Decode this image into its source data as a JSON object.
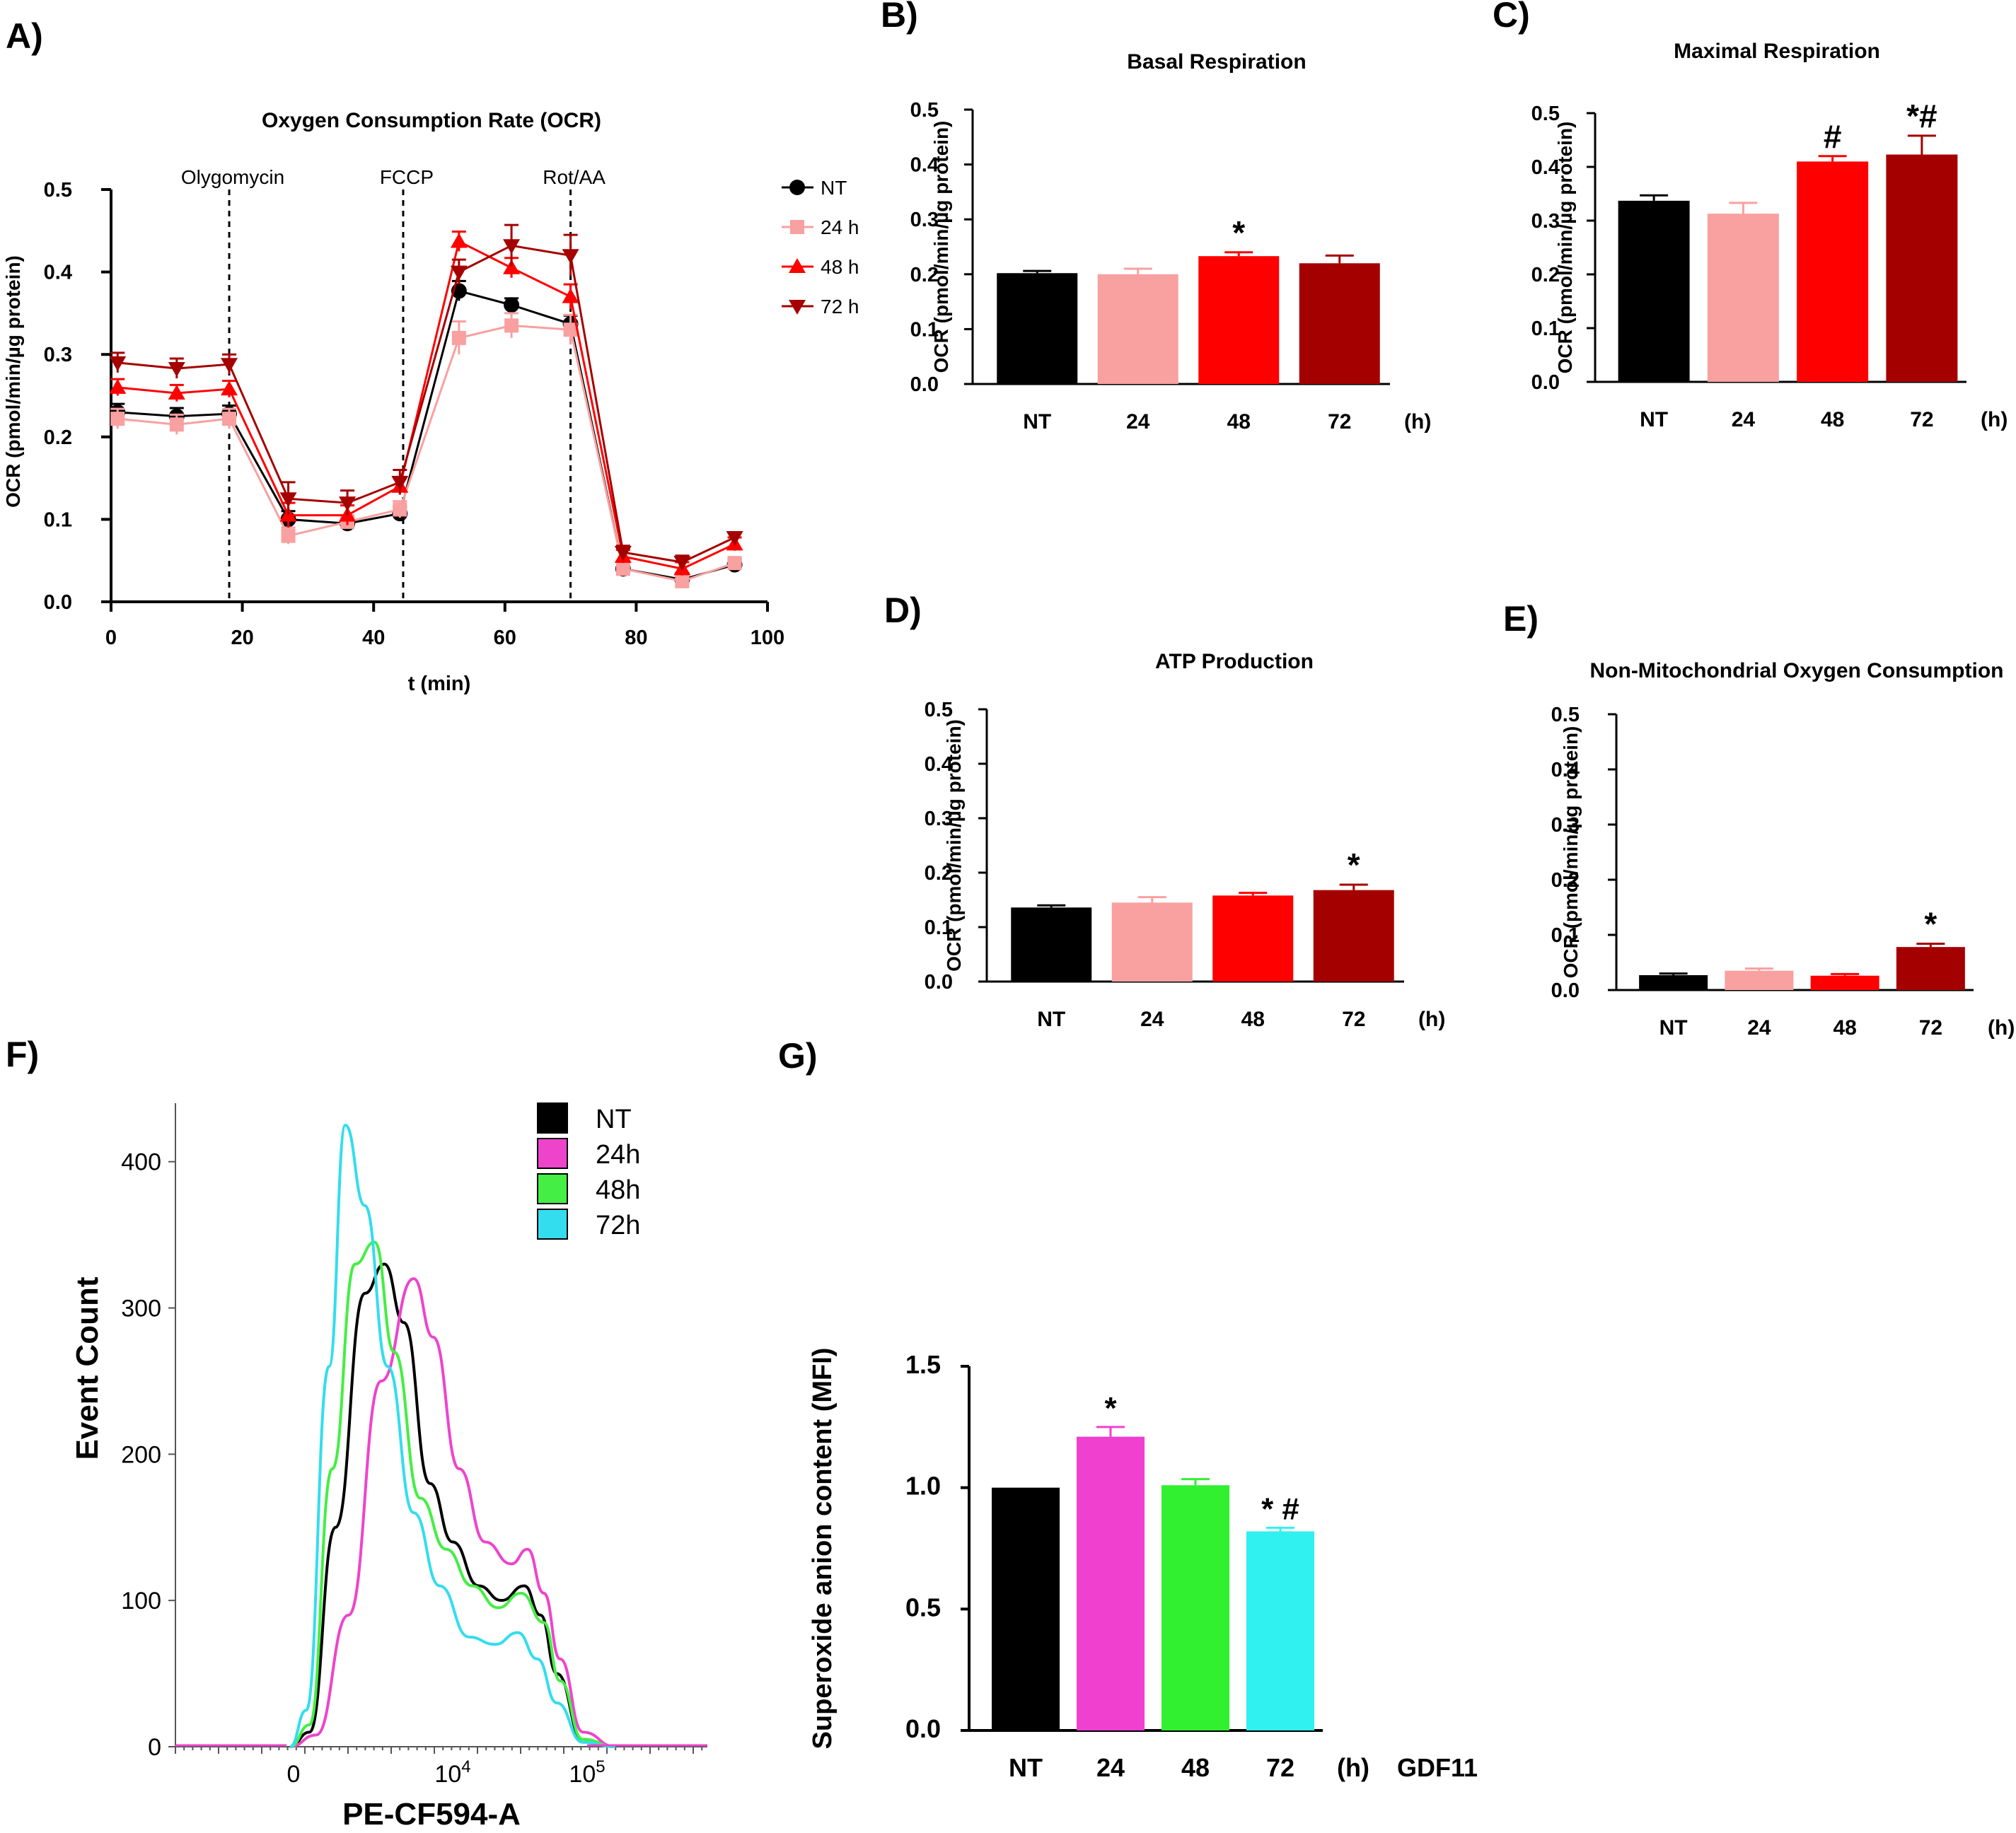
{
  "colors": {
    "NT": "#000000",
    "24": "#f9a0a0",
    "48": "#ff0000",
    "72": "#a50000",
    "flow_NT": "#000000",
    "flow_24": "#ee44cc",
    "flow_48": "#44ee44",
    "flow_72": "#33ddee",
    "g_NT": "#000000",
    "g_24": "#f040d0",
    "g_48": "#30f030",
    "g_72": "#30f0f0"
  },
  "chart_data": [
    {
      "id": "A",
      "panel_label": "A)",
      "type": "line",
      "title": "Oxygen Consumption Rate (OCR)",
      "xlabel": "t (min)",
      "ylabel": "OCR (pmol/min/µg protein)",
      "xlim": [
        0,
        100
      ],
      "ylim": [
        0,
        0.5
      ],
      "x_ticks": [
        "0",
        "20",
        "40",
        "60",
        "80",
        "100"
      ],
      "y_ticks": [
        "0.0",
        "0.1",
        "0.2",
        "0.3",
        "0.4",
        "0.5"
      ],
      "annotations": [
        {
          "x": 18,
          "text": "Olygomycin"
        },
        {
          "x": 44.5,
          "text": "FCCP"
        },
        {
          "x": 70,
          "text": "Rot/AA"
        }
      ],
      "x": [
        1,
        10,
        18,
        27,
        36,
        44,
        53,
        61,
        70,
        78,
        87,
        95
      ],
      "series": [
        {
          "name": "NT",
          "key": "NT",
          "marker": "circle",
          "values": [
            0.23,
            0.225,
            0.228,
            0.1,
            0.095,
            0.107,
            0.377,
            0.36,
            0.337,
            0.04,
            0.027,
            0.045
          ],
          "errors": [
            0.01,
            0.01,
            0.01,
            0.01,
            0.005,
            0.008,
            0.012,
            0.008,
            0.01,
            0.008,
            0.008,
            0.006
          ]
        },
        {
          "name": "24 h",
          "key": "24",
          "marker": "square",
          "values": [
            0.222,
            0.215,
            0.222,
            0.08,
            0.097,
            0.112,
            0.32,
            0.335,
            0.33,
            0.04,
            0.025,
            0.047
          ],
          "errors": [
            0.012,
            0.012,
            0.012,
            0.01,
            0.008,
            0.01,
            0.02,
            0.015,
            0.018,
            0.008,
            0.008,
            0.006
          ]
        },
        {
          "name": "48 h",
          "key": "48",
          "marker": "triangle",
          "values": [
            0.26,
            0.253,
            0.258,
            0.105,
            0.105,
            0.14,
            0.437,
            0.405,
            0.37,
            0.055,
            0.04,
            0.07
          ],
          "errors": [
            0.01,
            0.01,
            0.01,
            0.015,
            0.012,
            0.01,
            0.012,
            0.012,
            0.015,
            0.008,
            0.008,
            0.008
          ]
        },
        {
          "name": "72 h",
          "key": "72",
          "marker": "tridown",
          "values": [
            0.29,
            0.283,
            0.288,
            0.125,
            0.12,
            0.145,
            0.4,
            0.432,
            0.42,
            0.06,
            0.048,
            0.078
          ],
          "errors": [
            0.012,
            0.012,
            0.012,
            0.02,
            0.015,
            0.015,
            0.015,
            0.025,
            0.025,
            0.008,
            0.008,
            0.006
          ]
        }
      ]
    },
    {
      "id": "B",
      "panel_label": "B)",
      "type": "bar",
      "title": "Basal Respiration",
      "ylabel": "OCR (pmol/min/µg protein)",
      "ylim": [
        0,
        0.5
      ],
      "y_ticks": [
        "0.0",
        "0.1",
        "0.2",
        "0.3",
        "0.4",
        "0.5"
      ],
      "categories": [
        "NT",
        "24",
        "48",
        "72"
      ],
      "keys": [
        "NT",
        "24",
        "48",
        "72"
      ],
      "values": [
        0.202,
        0.2,
        0.233,
        0.22
      ],
      "errors": [
        0.004,
        0.01,
        0.007,
        0.014
      ],
      "marks": [
        "",
        "",
        "*",
        ""
      ],
      "unit_label": "(h)"
    },
    {
      "id": "C",
      "panel_label": "C)",
      "type": "bar",
      "title": "Maximal Respiration",
      "ylabel": "OCR (pmol/min/µg protein)",
      "ylim": [
        0,
        0.5
      ],
      "y_ticks": [
        "0.0",
        "0.1",
        "0.2",
        "0.3",
        "0.4",
        "0.5"
      ],
      "categories": [
        "NT",
        "24",
        "48",
        "72"
      ],
      "keys": [
        "NT",
        "24",
        "48",
        "72"
      ],
      "values": [
        0.337,
        0.313,
        0.41,
        0.423
      ],
      "errors": [
        0.01,
        0.02,
        0.01,
        0.035
      ],
      "marks": [
        "",
        "",
        "#",
        "*#"
      ],
      "unit_label": "(h)"
    },
    {
      "id": "D",
      "panel_label": "D)",
      "type": "bar",
      "title": "ATP Production",
      "ylabel": "OCR (pmol/min/µg protein)",
      "ylim": [
        0,
        0.5
      ],
      "y_ticks": [
        "0.0",
        "0.1",
        "0.2",
        "0.3",
        "0.4",
        "0.5"
      ],
      "categories": [
        "NT",
        "24",
        "48",
        "72"
      ],
      "keys": [
        "NT",
        "24",
        "48",
        "72"
      ],
      "values": [
        0.136,
        0.145,
        0.158,
        0.168
      ],
      "errors": [
        0.004,
        0.01,
        0.005,
        0.01
      ],
      "marks": [
        "",
        "",
        "",
        "*"
      ],
      "unit_label": "(h)"
    },
    {
      "id": "E",
      "panel_label": "E)",
      "type": "bar",
      "title": "Non-Mitochondrial Oxygen Consumption",
      "ylabel": "OCR (pmol/min/µg protein)",
      "ylim": [
        0,
        0.5
      ],
      "y_ticks": [
        "0.0",
        "0.1",
        "0.2",
        "0.3",
        "0.4",
        "0.5"
      ],
      "categories": [
        "NT",
        "24",
        "48",
        "72"
      ],
      "keys": [
        "NT",
        "24",
        "48",
        "72"
      ],
      "values": [
        0.027,
        0.035,
        0.026,
        0.078
      ],
      "errors": [
        0.003,
        0.004,
        0.003,
        0.006
      ],
      "marks": [
        "",
        "",
        "",
        "*"
      ],
      "unit_label": "(h)"
    },
    {
      "id": "F",
      "panel_label": "F)",
      "type": "line",
      "title": "",
      "xlabel": "PE-CF594-A",
      "ylabel": "Event Count",
      "ylim": [
        0,
        440
      ],
      "y_ticks": [
        "0",
        "100",
        "200",
        "300",
        "400"
      ],
      "x_ticks": [
        {
          "base": "0",
          "exp": ""
        },
        {
          "base": "10",
          "exp": "4"
        },
        {
          "base": "10",
          "exp": "5"
        }
      ],
      "legend": [
        "NT",
        "24h",
        "48h",
        "72h"
      ],
      "keys": [
        "flow_NT",
        "flow_24",
        "flow_48",
        "flow_72"
      ],
      "series_peaks": [
        {
          "name": "NT",
          "peaks": [
            [
              0.0,
              0
            ],
            [
              0.6,
              10
            ],
            [
              1.4,
              150
            ],
            [
              2.3,
              310
            ],
            [
              2.9,
              330
            ],
            [
              3.5,
              290
            ],
            [
              4.3,
              180
            ],
            [
              5.0,
              140
            ],
            [
              5.8,
              110
            ],
            [
              6.5,
              100
            ],
            [
              7.2,
              110
            ],
            [
              7.7,
              90
            ],
            [
              8.2,
              50
            ],
            [
              9.0,
              5
            ],
            [
              10.0,
              0
            ]
          ]
        },
        {
          "name": "24h",
          "peaks": [
            [
              0.0,
              0
            ],
            [
              0.8,
              8
            ],
            [
              1.8,
              90
            ],
            [
              2.8,
              250
            ],
            [
              3.8,
              320
            ],
            [
              4.4,
              280
            ],
            [
              5.2,
              190
            ],
            [
              6.0,
              140
            ],
            [
              6.8,
              125
            ],
            [
              7.3,
              135
            ],
            [
              7.8,
              105
            ],
            [
              8.3,
              60
            ],
            [
              9.0,
              10
            ],
            [
              10.0,
              0
            ]
          ]
        },
        {
          "name": "48h",
          "peaks": [
            [
              0.0,
              0
            ],
            [
              0.6,
              15
            ],
            [
              1.3,
              190
            ],
            [
              2.0,
              330
            ],
            [
              2.6,
              345
            ],
            [
              3.2,
              270
            ],
            [
              4.0,
              170
            ],
            [
              4.8,
              135
            ],
            [
              5.6,
              110
            ],
            [
              6.4,
              95
            ],
            [
              7.1,
              105
            ],
            [
              7.8,
              85
            ],
            [
              8.3,
              45
            ],
            [
              9.0,
              5
            ],
            [
              10.0,
              0
            ]
          ]
        },
        {
          "name": "72h",
          "peaks": [
            [
              0.0,
              0
            ],
            [
              0.5,
              25
            ],
            [
              1.2,
              260
            ],
            [
              1.7,
              425
            ],
            [
              2.3,
              370
            ],
            [
              3.0,
              260
            ],
            [
              3.8,
              160
            ],
            [
              4.6,
              110
            ],
            [
              5.5,
              75
            ],
            [
              6.3,
              70
            ],
            [
              7.0,
              78
            ],
            [
              7.6,
              60
            ],
            [
              8.2,
              30
            ],
            [
              9.0,
              3
            ],
            [
              10.0,
              0
            ]
          ]
        }
      ]
    },
    {
      "id": "G",
      "panel_label": "G)",
      "type": "bar",
      "title": "",
      "ylabel": "Superoxide anion content (MFI)",
      "ylim": [
        0,
        1.5
      ],
      "y_ticks": [
        "0.0",
        "0.5",
        "1.0",
        "1.5"
      ],
      "categories": [
        "NT",
        "24",
        "48",
        "72"
      ],
      "keys": [
        "g_NT",
        "g_24",
        "g_48",
        "g_72"
      ],
      "values": [
        1.0,
        1.21,
        1.01,
        0.82
      ],
      "errors": [
        0.0,
        0.04,
        0.025,
        0.015
      ],
      "marks": [
        "",
        "*",
        "",
        "* #"
      ],
      "unit_label": "(h)",
      "extra_label": "GDF11"
    }
  ]
}
